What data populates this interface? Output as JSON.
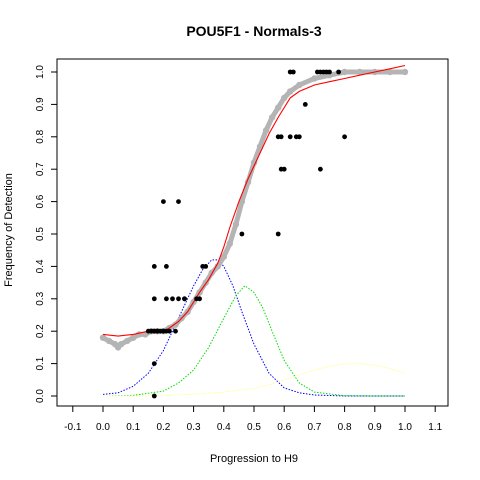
{
  "chart_data": {
    "type": "scatter",
    "title": "POU5F1 - Normals-3",
    "xlabel": "Progression to H9",
    "ylabel": "Frequency of Detection",
    "xlim": [
      -0.1,
      1.1
    ],
    "ylim": [
      0.0,
      1.0
    ],
    "x_ticks": [
      "-0.1",
      "0.0",
      "0.1",
      "0.2",
      "0.3",
      "0.4",
      "0.5",
      "0.6",
      "0.7",
      "0.8",
      "0.9",
      "1.0",
      "1.1"
    ],
    "y_ticks": [
      "0.0",
      "0.1",
      "0.2",
      "0.3",
      "0.4",
      "0.5",
      "0.6",
      "0.7",
      "0.8",
      "0.9",
      "1.0"
    ],
    "grid": false,
    "legend": "none",
    "colors": {
      "observed_points": "#000000",
      "smoothed_points": "#b4b4b4",
      "fitted_curve": "#ff0000",
      "density_1": "#0000ff",
      "density_2": "#00dd00",
      "density_3": "#ffff88"
    },
    "series": [
      {
        "kind": "observed_points",
        "x": [
          0.15,
          0.16,
          0.17,
          0.17,
          0.18,
          0.18,
          0.19,
          0.2,
          0.2,
          0.21,
          0.22,
          0.24,
          0.25,
          0.27,
          0.17,
          0.21,
          0.17,
          0.21,
          0.23,
          0.27,
          0.31,
          0.32,
          0.2,
          0.25,
          0.33,
          0.34,
          0.46,
          0.58,
          0.59,
          0.6,
          0.58,
          0.59,
          0.62,
          0.64,
          0.65,
          0.67,
          0.72,
          0.8,
          0.62,
          0.63,
          0.71,
          0.72,
          0.73,
          0.74,
          0.75,
          0.78,
          0.17,
          0.17
        ],
        "y": [
          0.2,
          0.2,
          0.2,
          0.2,
          0.2,
          0.2,
          0.2,
          0.2,
          0.2,
          0.2,
          0.2,
          0.2,
          0.3,
          0.3,
          0.3,
          0.3,
          0.4,
          0.4,
          0.3,
          0.3,
          0.3,
          0.3,
          0.6,
          0.6,
          0.4,
          0.4,
          0.5,
          0.5,
          0.7,
          0.7,
          0.8,
          0.8,
          0.8,
          0.8,
          0.8,
          0.9,
          0.7,
          0.8,
          1.0,
          1.0,
          1.0,
          1.0,
          1.0,
          1.0,
          1.0,
          1.0,
          0.1,
          0.0
        ]
      },
      {
        "kind": "smoothed_points",
        "x": [
          0.0,
          0.02,
          0.04,
          0.05,
          0.06,
          0.08,
          0.1,
          0.12,
          0.14,
          0.16,
          0.18,
          0.2,
          0.22,
          0.24,
          0.26,
          0.28,
          0.3,
          0.32,
          0.34,
          0.36,
          0.38,
          0.4,
          0.42,
          0.44,
          0.46,
          0.48,
          0.5,
          0.52,
          0.54,
          0.56,
          0.58,
          0.6,
          0.62,
          0.65,
          0.7,
          0.75,
          0.8,
          0.85,
          0.9,
          0.95,
          1.0
        ],
        "y": [
          0.18,
          0.17,
          0.16,
          0.15,
          0.16,
          0.17,
          0.18,
          0.19,
          0.19,
          0.2,
          0.2,
          0.2,
          0.21,
          0.22,
          0.24,
          0.26,
          0.29,
          0.32,
          0.35,
          0.38,
          0.4,
          0.43,
          0.47,
          0.53,
          0.6,
          0.66,
          0.72,
          0.77,
          0.82,
          0.86,
          0.89,
          0.92,
          0.94,
          0.96,
          0.98,
          0.99,
          1.0,
          1.0,
          1.0,
          1.0,
          1.0
        ]
      },
      {
        "kind": "fitted_curve",
        "x": [
          0.0,
          0.05,
          0.1,
          0.15,
          0.2,
          0.22,
          0.25,
          0.28,
          0.3,
          0.32,
          0.35,
          0.38,
          0.4,
          0.42,
          0.45,
          0.48,
          0.5,
          0.53,
          0.55,
          0.58,
          0.6,
          0.62,
          0.65,
          0.7,
          0.75,
          0.8,
          0.85,
          0.9,
          0.95,
          1.0
        ],
        "y": [
          0.19,
          0.185,
          0.19,
          0.2,
          0.2,
          0.21,
          0.23,
          0.26,
          0.29,
          0.32,
          0.36,
          0.41,
          0.46,
          0.52,
          0.6,
          0.67,
          0.71,
          0.77,
          0.81,
          0.86,
          0.89,
          0.92,
          0.94,
          0.96,
          0.97,
          0.98,
          0.99,
          1.0,
          1.01,
          1.02
        ]
      },
      {
        "kind": "density",
        "color_key": "density_1",
        "x": [
          0.0,
          0.05,
          0.1,
          0.15,
          0.2,
          0.25,
          0.3,
          0.33,
          0.36,
          0.38,
          0.4,
          0.43,
          0.46,
          0.5,
          0.55,
          0.6,
          0.65,
          0.7,
          0.8,
          0.9,
          1.0
        ],
        "y": [
          0.005,
          0.01,
          0.03,
          0.07,
          0.14,
          0.24,
          0.34,
          0.39,
          0.42,
          0.42,
          0.4,
          0.34,
          0.26,
          0.16,
          0.07,
          0.025,
          0.01,
          0.003,
          0.0,
          0.0,
          0.0
        ]
      },
      {
        "kind": "density",
        "color_key": "density_2",
        "x": [
          0.0,
          0.1,
          0.2,
          0.25,
          0.3,
          0.35,
          0.4,
          0.44,
          0.47,
          0.5,
          0.53,
          0.56,
          0.6,
          0.65,
          0.7,
          0.8,
          0.9,
          1.0
        ],
        "y": [
          0.0,
          0.002,
          0.015,
          0.04,
          0.08,
          0.15,
          0.24,
          0.31,
          0.34,
          0.32,
          0.27,
          0.2,
          0.11,
          0.04,
          0.012,
          0.001,
          0.0,
          0.0
        ]
      },
      {
        "kind": "density",
        "color_key": "density_3",
        "x": [
          0.0,
          0.1,
          0.2,
          0.3,
          0.4,
          0.5,
          0.55,
          0.6,
          0.65,
          0.7,
          0.75,
          0.8,
          0.85,
          0.9,
          0.95,
          1.0
        ],
        "y": [
          0.0,
          0.0,
          0.002,
          0.006,
          0.012,
          0.024,
          0.035,
          0.05,
          0.066,
          0.08,
          0.092,
          0.099,
          0.1,
          0.095,
          0.085,
          0.07
        ]
      }
    ]
  }
}
